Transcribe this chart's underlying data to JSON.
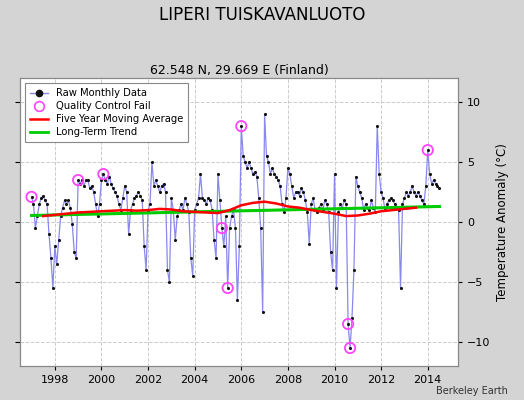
{
  "title": "LIPERI TUISKAVANLUOTO",
  "subtitle": "62.548 N, 29.669 E (Finland)",
  "ylabel": "Temperature Anomaly (°C)",
  "footer": "Berkeley Earth",
  "xlim": [
    1996.5,
    2015.3
  ],
  "ylim": [
    -12,
    12
  ],
  "yticks": [
    -10,
    -5,
    0,
    5,
    10
  ],
  "xticks": [
    1998,
    2000,
    2002,
    2004,
    2006,
    2008,
    2010,
    2012,
    2014
  ],
  "background_color": "#d4d4d4",
  "plot_bg_color": "#ffffff",
  "grid_color": "#cccccc",
  "raw_line_color": "#8888ee",
  "raw_marker_color": "#111111",
  "ma_color": "#ff0000",
  "trend_color": "#00cc00",
  "qc_color": "#ff44ff",
  "monthly_data": [
    [
      1997.0,
      2.1
    ],
    [
      1997.083,
      1.5
    ],
    [
      1997.167,
      -0.5
    ],
    [
      1997.25,
      0.5
    ],
    [
      1997.333,
      1.5
    ],
    [
      1997.417,
      2.0
    ],
    [
      1997.5,
      2.2
    ],
    [
      1997.583,
      1.8
    ],
    [
      1997.667,
      1.5
    ],
    [
      1997.75,
      -1.0
    ],
    [
      1997.833,
      -3.0
    ],
    [
      1997.917,
      -5.5
    ],
    [
      1998.0,
      -2.0
    ],
    [
      1998.083,
      -3.5
    ],
    [
      1998.167,
      -1.5
    ],
    [
      1998.25,
      0.5
    ],
    [
      1998.333,
      1.2
    ],
    [
      1998.417,
      1.8
    ],
    [
      1998.5,
      1.5
    ],
    [
      1998.583,
      1.8
    ],
    [
      1998.667,
      1.2
    ],
    [
      1998.75,
      -0.2
    ],
    [
      1998.833,
      -2.5
    ],
    [
      1998.917,
      -3.0
    ],
    [
      1999.0,
      3.5
    ],
    [
      1999.083,
      3.2
    ],
    [
      1999.167,
      3.5
    ],
    [
      1999.25,
      3.0
    ],
    [
      1999.333,
      3.5
    ],
    [
      1999.417,
      3.5
    ],
    [
      1999.5,
      2.8
    ],
    [
      1999.583,
      3.0
    ],
    [
      1999.667,
      2.5
    ],
    [
      1999.75,
      1.5
    ],
    [
      1999.833,
      0.5
    ],
    [
      1999.917,
      1.5
    ],
    [
      2000.0,
      3.5
    ],
    [
      2000.083,
      4.0
    ],
    [
      2000.167,
      3.5
    ],
    [
      2000.25,
      3.2
    ],
    [
      2000.333,
      3.8
    ],
    [
      2000.417,
      3.2
    ],
    [
      2000.5,
      2.8
    ],
    [
      2000.583,
      2.5
    ],
    [
      2000.667,
      2.2
    ],
    [
      2000.75,
      1.5
    ],
    [
      2000.833,
      1.0
    ],
    [
      2000.917,
      2.0
    ],
    [
      2001.0,
      3.0
    ],
    [
      2001.083,
      2.5
    ],
    [
      2001.167,
      -1.0
    ],
    [
      2001.25,
      1.0
    ],
    [
      2001.333,
      1.5
    ],
    [
      2001.417,
      2.0
    ],
    [
      2001.5,
      2.2
    ],
    [
      2001.583,
      2.5
    ],
    [
      2001.667,
      2.2
    ],
    [
      2001.75,
      1.8
    ],
    [
      2001.833,
      -2.0
    ],
    [
      2001.917,
      -4.0
    ],
    [
      2002.0,
      1.0
    ],
    [
      2002.083,
      1.5
    ],
    [
      2002.167,
      5.0
    ],
    [
      2002.25,
      3.0
    ],
    [
      2002.333,
      3.5
    ],
    [
      2002.417,
      3.0
    ],
    [
      2002.5,
      2.5
    ],
    [
      2002.583,
      3.0
    ],
    [
      2002.667,
      3.2
    ],
    [
      2002.75,
      2.5
    ],
    [
      2002.833,
      -4.0
    ],
    [
      2002.917,
      -5.0
    ],
    [
      2003.0,
      2.0
    ],
    [
      2003.083,
      1.0
    ],
    [
      2003.167,
      -1.5
    ],
    [
      2003.25,
      0.5
    ],
    [
      2003.333,
      1.0
    ],
    [
      2003.417,
      1.5
    ],
    [
      2003.5,
      1.0
    ],
    [
      2003.583,
      2.0
    ],
    [
      2003.667,
      1.5
    ],
    [
      2003.75,
      0.8
    ],
    [
      2003.833,
      -3.0
    ],
    [
      2003.917,
      -4.5
    ],
    [
      2004.0,
      1.0
    ],
    [
      2004.083,
      1.5
    ],
    [
      2004.167,
      2.0
    ],
    [
      2004.25,
      4.0
    ],
    [
      2004.333,
      2.0
    ],
    [
      2004.417,
      1.8
    ],
    [
      2004.5,
      1.5
    ],
    [
      2004.583,
      2.0
    ],
    [
      2004.667,
      1.8
    ],
    [
      2004.75,
      1.0
    ],
    [
      2004.833,
      -1.5
    ],
    [
      2004.917,
      -3.0
    ],
    [
      2005.0,
      4.0
    ],
    [
      2005.083,
      1.8
    ],
    [
      2005.167,
      -0.5
    ],
    [
      2005.25,
      -2.0
    ],
    [
      2005.333,
      0.5
    ],
    [
      2005.417,
      -5.5
    ],
    [
      2005.5,
      -0.5
    ],
    [
      2005.583,
      0.5
    ],
    [
      2005.667,
      1.0
    ],
    [
      2005.75,
      -0.5
    ],
    [
      2005.833,
      -6.5
    ],
    [
      2005.917,
      -2.0
    ],
    [
      2006.0,
      8.0
    ],
    [
      2006.083,
      5.5
    ],
    [
      2006.167,
      5.0
    ],
    [
      2006.25,
      4.5
    ],
    [
      2006.333,
      5.0
    ],
    [
      2006.417,
      4.5
    ],
    [
      2006.5,
      4.0
    ],
    [
      2006.583,
      4.2
    ],
    [
      2006.667,
      3.8
    ],
    [
      2006.75,
      2.0
    ],
    [
      2006.833,
      -0.5
    ],
    [
      2006.917,
      -7.5
    ],
    [
      2007.0,
      9.0
    ],
    [
      2007.083,
      5.5
    ],
    [
      2007.167,
      5.0
    ],
    [
      2007.25,
      4.0
    ],
    [
      2007.333,
      4.5
    ],
    [
      2007.417,
      4.0
    ],
    [
      2007.5,
      3.8
    ],
    [
      2007.583,
      3.5
    ],
    [
      2007.667,
      3.0
    ],
    [
      2007.75,
      1.5
    ],
    [
      2007.833,
      0.8
    ],
    [
      2007.917,
      2.0
    ],
    [
      2008.0,
      4.5
    ],
    [
      2008.083,
      4.0
    ],
    [
      2008.167,
      3.0
    ],
    [
      2008.25,
      2.0
    ],
    [
      2008.333,
      2.5
    ],
    [
      2008.417,
      2.5
    ],
    [
      2008.5,
      2.2
    ],
    [
      2008.583,
      2.8
    ],
    [
      2008.667,
      2.5
    ],
    [
      2008.75,
      1.8
    ],
    [
      2008.833,
      0.8
    ],
    [
      2008.917,
      -1.8
    ],
    [
      2009.0,
      1.5
    ],
    [
      2009.083,
      2.0
    ],
    [
      2009.167,
      1.0
    ],
    [
      2009.25,
      0.8
    ],
    [
      2009.333,
      1.2
    ],
    [
      2009.417,
      1.5
    ],
    [
      2009.5,
      1.0
    ],
    [
      2009.583,
      1.8
    ],
    [
      2009.667,
      1.5
    ],
    [
      2009.75,
      0.8
    ],
    [
      2009.833,
      -2.5
    ],
    [
      2009.917,
      -4.0
    ],
    [
      2010.0,
      4.0
    ],
    [
      2010.083,
      -5.5
    ],
    [
      2010.167,
      0.8
    ],
    [
      2010.25,
      1.5
    ],
    [
      2010.333,
      1.2
    ],
    [
      2010.417,
      1.8
    ],
    [
      2010.5,
      1.5
    ],
    [
      2010.583,
      -8.5
    ],
    [
      2010.667,
      -10.5
    ],
    [
      2010.75,
      -8.0
    ],
    [
      2010.833,
      -4.0
    ],
    [
      2010.917,
      3.8
    ],
    [
      2011.0,
      3.0
    ],
    [
      2011.083,
      2.5
    ],
    [
      2011.167,
      2.0
    ],
    [
      2011.25,
      1.0
    ],
    [
      2011.333,
      1.5
    ],
    [
      2011.417,
      1.2
    ],
    [
      2011.5,
      1.0
    ],
    [
      2011.583,
      1.8
    ],
    [
      2011.667,
      1.2
    ],
    [
      2011.75,
      0.8
    ],
    [
      2011.833,
      8.0
    ],
    [
      2011.917,
      4.0
    ],
    [
      2012.0,
      2.5
    ],
    [
      2012.083,
      2.0
    ],
    [
      2012.167,
      1.0
    ],
    [
      2012.25,
      1.5
    ],
    [
      2012.333,
      1.8
    ],
    [
      2012.417,
      2.0
    ],
    [
      2012.5,
      1.8
    ],
    [
      2012.583,
      1.5
    ],
    [
      2012.667,
      1.2
    ],
    [
      2012.75,
      1.0
    ],
    [
      2012.833,
      -5.5
    ],
    [
      2012.917,
      1.5
    ],
    [
      2013.0,
      2.0
    ],
    [
      2013.083,
      2.5
    ],
    [
      2013.167,
      2.2
    ],
    [
      2013.25,
      2.5
    ],
    [
      2013.333,
      3.0
    ],
    [
      2013.417,
      2.5
    ],
    [
      2013.5,
      2.2
    ],
    [
      2013.583,
      2.5
    ],
    [
      2013.667,
      2.2
    ],
    [
      2013.75,
      1.8
    ],
    [
      2013.833,
      1.5
    ],
    [
      2013.917,
      3.0
    ],
    [
      2014.0,
      6.0
    ],
    [
      2014.083,
      4.0
    ],
    [
      2014.167,
      3.2
    ],
    [
      2014.25,
      3.5
    ],
    [
      2014.333,
      3.2
    ],
    [
      2014.417,
      3.0
    ],
    [
      2014.5,
      2.8
    ]
  ],
  "qc_fails": [
    [
      1997.0,
      2.1
    ],
    [
      1999.0,
      3.5
    ],
    [
      2000.083,
      4.0
    ],
    [
      2005.167,
      -0.5
    ],
    [
      2005.417,
      -5.5
    ],
    [
      2006.0,
      8.0
    ],
    [
      2010.583,
      -8.5
    ],
    [
      2010.667,
      -10.5
    ],
    [
      2014.0,
      6.0
    ]
  ],
  "moving_avg": [
    [
      1997.5,
      0.5
    ],
    [
      1998.0,
      0.6
    ],
    [
      1998.5,
      0.7
    ],
    [
      1999.0,
      0.8
    ],
    [
      1999.5,
      0.85
    ],
    [
      2000.0,
      0.9
    ],
    [
      2000.5,
      0.95
    ],
    [
      2001.0,
      1.0
    ],
    [
      2001.5,
      0.95
    ],
    [
      2002.0,
      1.0
    ],
    [
      2002.5,
      1.1
    ],
    [
      2003.0,
      1.05
    ],
    [
      2003.5,
      0.9
    ],
    [
      2004.0,
      0.85
    ],
    [
      2004.5,
      0.8
    ],
    [
      2005.0,
      0.75
    ],
    [
      2005.5,
      1.0
    ],
    [
      2006.0,
      1.4
    ],
    [
      2006.5,
      1.6
    ],
    [
      2007.0,
      1.7
    ],
    [
      2007.5,
      1.55
    ],
    [
      2008.0,
      1.3
    ],
    [
      2008.5,
      1.2
    ],
    [
      2009.0,
      1.0
    ],
    [
      2009.5,
      0.85
    ],
    [
      2010.0,
      0.7
    ],
    [
      2010.5,
      0.5
    ],
    [
      2011.0,
      0.55
    ],
    [
      2011.5,
      0.7
    ],
    [
      2012.0,
      0.9
    ],
    [
      2012.5,
      1.0
    ],
    [
      2013.0,
      1.1
    ],
    [
      2013.5,
      1.2
    ]
  ],
  "trend_x": [
    1997.0,
    2014.5
  ],
  "trend_y": [
    0.55,
    1.3
  ]
}
